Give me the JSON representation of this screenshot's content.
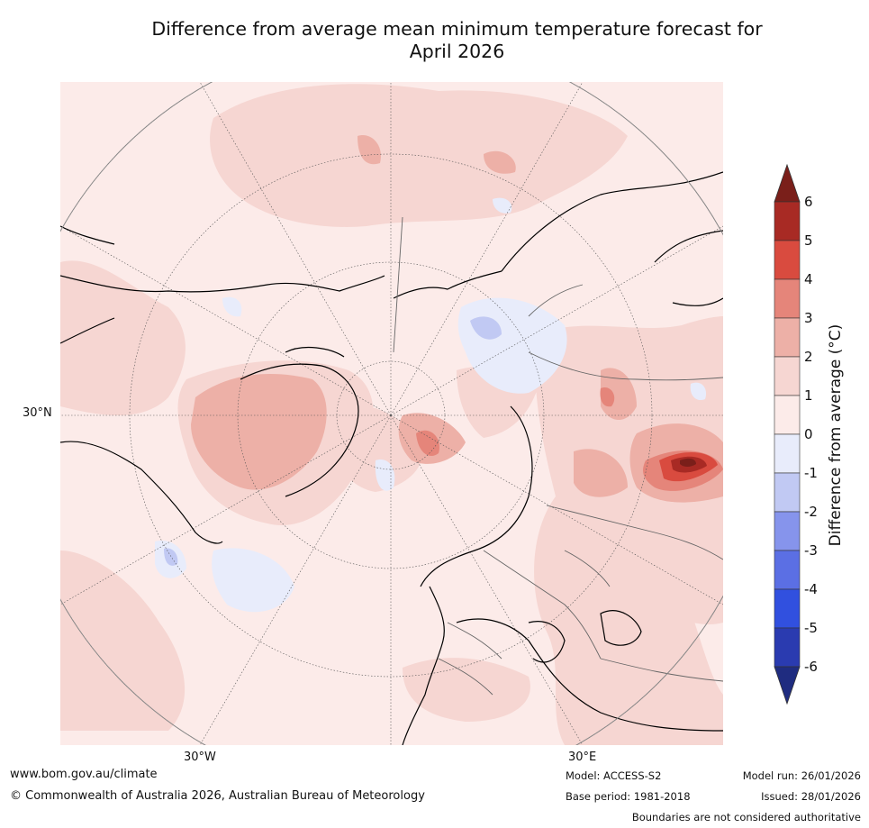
{
  "title_line1": "Difference from average mean minimum temperature forecast for",
  "title_line2": "April 2026",
  "map": {
    "projection": "north-polar-stereographic",
    "lat_label": "30°N",
    "lon_labels": [
      "30°W",
      "30°E"
    ]
  },
  "colorbar": {
    "label": "Difference from average (°C)",
    "ticks": [
      "6",
      "5",
      "4",
      "3",
      "2",
      "1",
      "0",
      "-1",
      "-2",
      "-3",
      "-4",
      "-5",
      "-6"
    ],
    "colors": {
      "above_6": "#7a1f1a",
      "5_6": "#a82a24",
      "4_5": "#d94b3f",
      "3_4": "#e5857a",
      "2_3": "#edb0a7",
      "1_2": "#f6d6d2",
      "0_1": "#fcebe9",
      "m1_0": "#e8ecfb",
      "m2_m1": "#c1c9f3",
      "m3_m2": "#8694ec",
      "m4_m3": "#5b6fe4",
      "m5_m4": "#3150df",
      "m6_m5": "#2a3bb0",
      "below_m6": "#1f2c80"
    }
  },
  "footer": {
    "website": "www.bom.gov.au/climate",
    "copyright": "© Commonwealth of Australia 2026, Australian Bureau of Meteorology",
    "model": "Model: ACCESS-S2",
    "base_period": "Base period: 1981-2018",
    "model_run": "Model run: 26/01/2026",
    "issued": "Issued: 28/01/2026",
    "disclaimer": "Boundaries are not considered authoritative"
  }
}
